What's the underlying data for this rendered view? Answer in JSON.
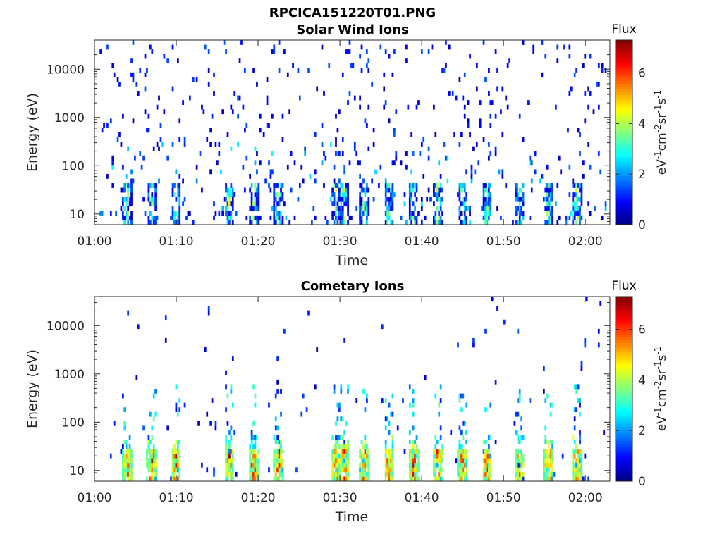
{
  "figure_title": "RPCICA151220T01.PNG",
  "colorbar_unit": "eV-1cm-2sr-1s-1",
  "chart_data": [
    {
      "type": "heatmap",
      "title": "Solar Wind Ions",
      "xlabel": "Time",
      "ylabel": "Energy (eV)",
      "yscale": "log",
      "ylim": [
        6,
        40000
      ],
      "xlim_minutes": [
        0,
        63
      ],
      "x_tick_labels": [
        "01:00",
        "01:10",
        "01:20",
        "01:30",
        "01:40",
        "01:50",
        "02:00"
      ],
      "y_tick_labels": [
        "10",
        "100",
        "1000",
        "10000"
      ],
      "colorbar": {
        "label": "Flux",
        "range": [
          0,
          7.3
        ],
        "tick_labels": [
          "0",
          "2",
          "4",
          "6"
        ],
        "colormap": "jet"
      },
      "hot_columns_minutes": [
        4,
        7,
        10,
        16.5,
        19.5,
        22.5,
        29.5,
        30.5,
        33,
        36,
        39,
        42,
        45,
        48,
        52,
        55.5,
        59
      ],
      "description_level": "sparse low flux (0-4) across all energies, higher near 10-40 eV"
    },
    {
      "type": "heatmap",
      "title": "Cometary Ions",
      "xlabel": "Time",
      "ylabel": "Energy (eV)",
      "yscale": "log",
      "ylim": [
        6,
        40000
      ],
      "xlim_minutes": [
        0,
        63
      ],
      "x_tick_labels": [
        "01:00",
        "01:10",
        "01:20",
        "01:30",
        "01:40",
        "01:50",
        "02:00"
      ],
      "y_tick_labels": [
        "10",
        "100",
        "1000",
        "10000"
      ],
      "colorbar": {
        "label": "Flux",
        "range": [
          0,
          7.3
        ],
        "tick_labels": [
          "0",
          "2",
          "4",
          "6"
        ],
        "colormap": "jet"
      },
      "hot_columns_minutes": [
        4,
        7,
        10,
        16.5,
        19.5,
        22.5,
        29.5,
        30.5,
        33,
        36,
        39,
        42,
        45,
        48,
        52,
        55.5,
        59
      ],
      "description_level": "strong flux (5-7) below ~30 eV in bursts, sparse low flux at higher energies"
    }
  ]
}
